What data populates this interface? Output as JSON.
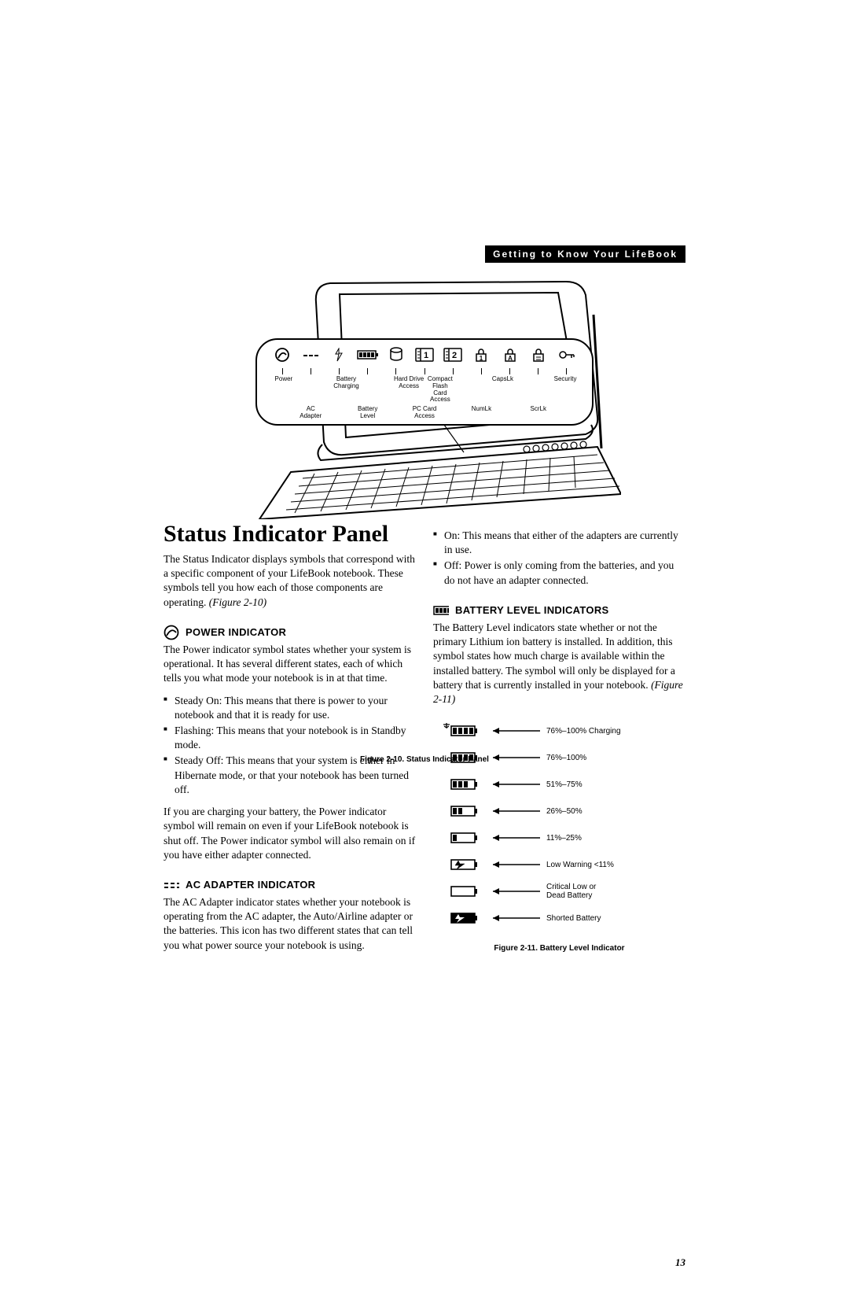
{
  "header": {
    "section_title": "Getting to Know Your LifeBook"
  },
  "fig10": {
    "caption": "Figure 2-10. Status Indicator Panel",
    "icons": [
      "Ⓥ",
      "- - -",
      "⇣",
      "",
      "◯",
      "1",
      "2",
      "①",
      "A",
      "①",
      "⚷"
    ],
    "top_labels": [
      "Power",
      "",
      "Battery\nCharging",
      "",
      "Hard Drive Access",
      "Compact Flash\nCard Access",
      "",
      "CapsLk",
      "",
      "Security"
    ],
    "bot_labels": [
      "",
      "AC Adapter",
      "",
      "Battery Level",
      "",
      "PC Card Access",
      "",
      "NumLk",
      "",
      "ScrLk",
      ""
    ]
  },
  "col1": {
    "title": "Status Indicator Panel",
    "intro": "The Status Indicator displays symbols that correspond with a specific component of your LifeBook notebook. These symbols tell you how each of those components are operating. ",
    "intro_ref": "(Figure 2-10)",
    "power_h": "POWER INDICATOR",
    "power_p": "The Power indicator symbol states whether your system is operational. It has several different states, each of which tells you what mode your notebook is in at that time.",
    "power_b1": "Steady On: This means that there is power to your notebook and that it is ready for use.",
    "power_b2": "Flashing: This means that your notebook is in Standby mode.",
    "power_b3": "Steady Off: This means that your system is either in Hibernate mode, or that your notebook has been turned off.",
    "power_p2": "If you are charging your battery, the Power indicator symbol will remain on even if your LifeBook notebook is shut off. The Power indicator symbol will also remain on if you have either adapter connected.",
    "ac_h": "AC ADAPTER INDICATOR",
    "ac_p": "The AC Adapter indicator states whether your notebook is operating from the AC adapter, the Auto/Airline adapter or the batteries. This icon has two different states that can tell you what power source your notebook is using."
  },
  "col2": {
    "ac_b1": "On: This means that either of the adapters are currently in use.",
    "ac_b2": "Off: Power is only coming from the batteries, and you do not have an adapter connected.",
    "batt_h": "BATTERY LEVEL INDICATORS",
    "batt_p": "The Battery Level indicators state whether or not the primary Lithium ion battery is installed. In addition, this symbol states how much charge is available within the installed battery. The symbol will only be displayed for a battery that is currently installed in your notebook. ",
    "batt_ref": "(Figure 2-11)"
  },
  "fig11": {
    "caption": "Figure 2-11.  Battery Level Indicator",
    "rows": [
      {
        "bars": 4,
        "arrow": true,
        "label": "76%–100% Charging",
        "short": false,
        "flash": false
      },
      {
        "bars": 4,
        "arrow": false,
        "label": "76%–100%",
        "short": false,
        "flash": false
      },
      {
        "bars": 3,
        "arrow": false,
        "label": "51%–75%",
        "short": false,
        "flash": false
      },
      {
        "bars": 2,
        "arrow": false,
        "label": "26%–50%",
        "short": false,
        "flash": false
      },
      {
        "bars": 1,
        "arrow": false,
        "label": "11%–25%",
        "short": false,
        "flash": false
      },
      {
        "bars": 0,
        "arrow": false,
        "label": "Low Warning <11%",
        "short": false,
        "flash": true
      },
      {
        "bars": 0,
        "arrow": false,
        "label": "Critical Low or\nDead Battery",
        "short": false,
        "flash": false
      },
      {
        "bars": 0,
        "arrow": false,
        "label": "Shorted Battery",
        "short": true,
        "flash": true
      }
    ]
  },
  "page_number": "13",
  "style": {
    "black": "#000000",
    "white": "#ffffff",
    "body_font_pt": 10,
    "title_font_pt": 22,
    "heading_font_pt": 10,
    "caption_font_pt": 7
  }
}
